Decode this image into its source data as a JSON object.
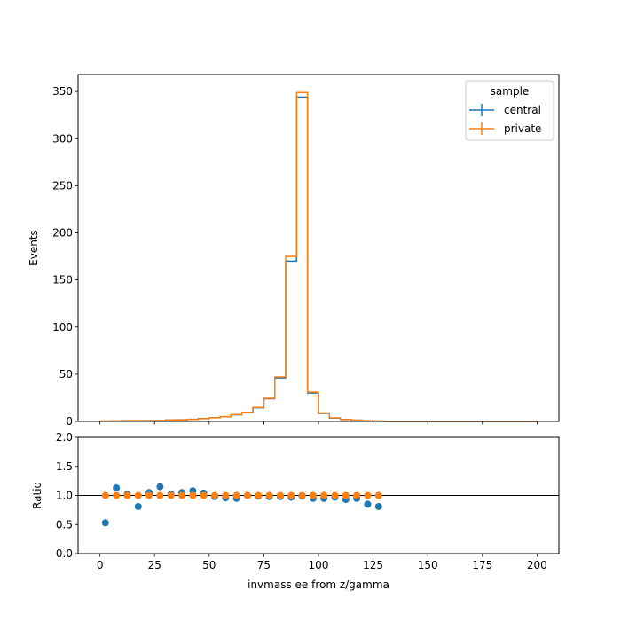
{
  "chart_data": [
    {
      "type": "step-histogram",
      "ylabel": "Events",
      "xlim": [
        -10,
        210
      ],
      "ylim": [
        0,
        368
      ],
      "yticks": [
        0,
        50,
        100,
        150,
        200,
        250,
        300,
        350
      ],
      "bin_edges": [
        0,
        5,
        10,
        15,
        20,
        25,
        30,
        35,
        40,
        45,
        50,
        55,
        60,
        65,
        70,
        75,
        80,
        85,
        90,
        95,
        100,
        105,
        110,
        115,
        120,
        125,
        130,
        135,
        140,
        145,
        150,
        155,
        160,
        165,
        170,
        175,
        180,
        185,
        190,
        195,
        200
      ],
      "legend": {
        "title": "sample",
        "placement": "upper right"
      },
      "series": [
        {
          "name": "central",
          "color": "#1f77b4",
          "values": [
            0.3,
            0.6,
            0.8,
            0.8,
            0.9,
            1.0,
            1.5,
            1.8,
            2.2,
            3.0,
            4.0,
            5.0,
            7.0,
            9.5,
            14.5,
            24,
            46,
            170,
            344,
            30,
            8.5,
            3.5,
            2.0,
            1.3,
            0.7,
            0.4,
            0,
            0,
            0,
            0,
            0,
            0,
            0,
            0,
            0,
            0,
            0,
            0,
            0,
            0
          ]
        },
        {
          "name": "private",
          "color": "#ff7f0e",
          "values": [
            0.5,
            0.55,
            0.8,
            0.95,
            0.85,
            0.9,
            1.5,
            1.8,
            2.1,
            2.9,
            3.9,
            5.1,
            7.2,
            9.7,
            14.8,
            24.5,
            47,
            175,
            349,
            31,
            9,
            3.8,
            2.1,
            1.4,
            0.8,
            0.45,
            0,
            0,
            0,
            0,
            0,
            0,
            0,
            0,
            0,
            0,
            0,
            0,
            0,
            0
          ]
        }
      ]
    },
    {
      "type": "scatter",
      "xlabel": "invmass ee from z/gamma",
      "ylabel": "Ratio",
      "xlim": [
        -10,
        210
      ],
      "ylim": [
        0,
        2
      ],
      "xticks": [
        0,
        25,
        50,
        75,
        100,
        125,
        150,
        175,
        200
      ],
      "yticks": [
        0.0,
        0.5,
        1.0,
        1.5,
        2.0
      ],
      "reference_line": 1.0,
      "x": [
        2.5,
        7.5,
        12.5,
        17.5,
        22.5,
        27.5,
        32.5,
        37.5,
        42.5,
        47.5,
        52.5,
        57.5,
        62.5,
        67.5,
        72.5,
        77.5,
        82.5,
        87.5,
        92.5,
        97.5,
        102.5,
        107.5,
        112.5,
        117.5,
        122.5,
        127.5
      ],
      "series": [
        {
          "color": "#1f77b4",
          "values": [
            0.53,
            1.13,
            1.02,
            0.81,
            1.05,
            1.15,
            1.02,
            1.05,
            1.08,
            1.04,
            0.98,
            0.96,
            0.95,
            1.0,
            0.99,
            0.98,
            0.98,
            0.97,
            0.99,
            0.95,
            0.95,
            0.97,
            0.93,
            0.95,
            0.85,
            0.81
          ]
        },
        {
          "color": "#ff7f0e",
          "values": [
            1.0,
            1.0,
            1.0,
            1.0,
            1.0,
            1.0,
            1.0,
            1.0,
            1.0,
            1.0,
            1.0,
            1.0,
            1.0,
            1.0,
            1.0,
            1.0,
            1.0,
            1.0,
            1.0,
            1.0,
            1.0,
            1.0,
            1.0,
            1.0,
            1.0,
            1.0
          ]
        }
      ]
    }
  ]
}
